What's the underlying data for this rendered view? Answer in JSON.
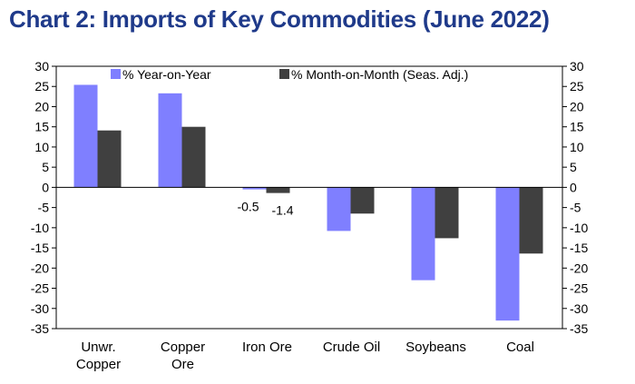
{
  "chart_data": {
    "type": "bar",
    "title": "Chart 2: Imports of Key Commodities (June 2022)",
    "categories": [
      [
        "Unwr.",
        "Copper"
      ],
      [
        "Copper",
        "Ore"
      ],
      [
        "Iron Ore"
      ],
      [
        "Crude Oil"
      ],
      [
        "Soybeans"
      ],
      [
        "Coal"
      ]
    ],
    "series": [
      {
        "name": "% Year-on-Year",
        "color": "#7f7fff",
        "values": [
          25.4,
          23.3,
          -0.5,
          -10.8,
          -23.0,
          -33.0
        ]
      },
      {
        "name": "% Month-on-Month (Seas. Adj.)",
        "color": "#404040",
        "values": [
          14.1,
          15.0,
          -1.4,
          -6.5,
          -12.6,
          -16.4
        ]
      }
    ],
    "data_labels": [
      {
        "series": 0,
        "category": 2,
        "text": "-0.5"
      },
      {
        "series": 1,
        "category": 2,
        "text": "-1.4"
      }
    ],
    "ylim": [
      -35,
      30
    ],
    "yticks": [
      30,
      25,
      20,
      15,
      10,
      5,
      0,
      -5,
      -10,
      -15,
      -20,
      -25,
      -30,
      -35
    ],
    "secondary_axis": true,
    "grid": false,
    "legend_position": "top-center",
    "title_color": "#1f3a8a"
  }
}
